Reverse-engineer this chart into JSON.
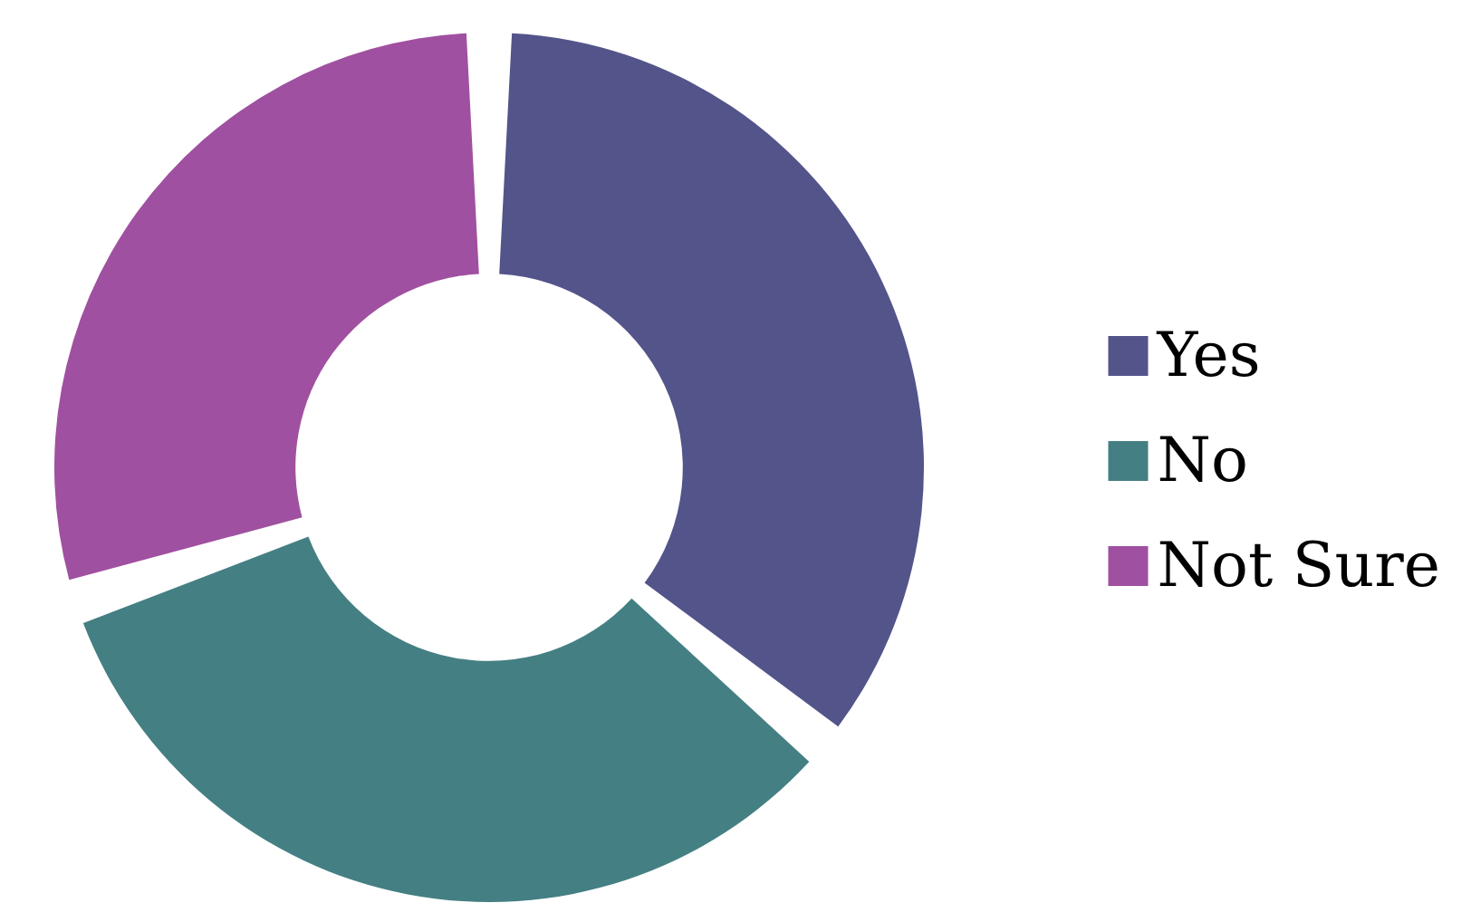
{
  "chart_data": {
    "type": "donut",
    "categories": [
      "Yes",
      "No",
      "Not Sure"
    ],
    "values": [
      36,
      34,
      30
    ],
    "colors": [
      "#53548a",
      "#447f83",
      "#a050a0"
    ],
    "legend": "right"
  }
}
